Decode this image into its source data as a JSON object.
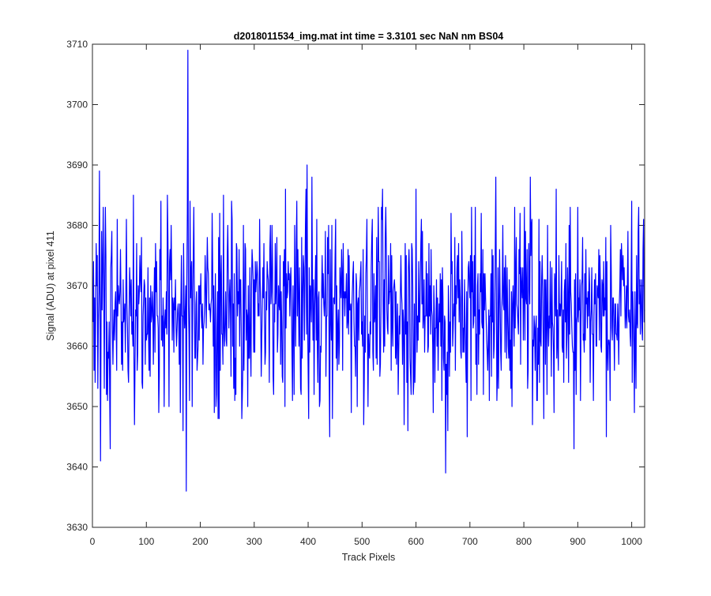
{
  "chart_data": {
    "type": "line",
    "title": "d2018011534_img.mat int time = 3.3101 sec  NaN nm BS04",
    "xlabel": "Track Pixels",
    "ylabel": "Signal (ADU) at pixel 411",
    "xlim": [
      0,
      1024
    ],
    "ylim": [
      3630,
      3710
    ],
    "xticks": [
      0,
      100,
      200,
      300,
      400,
      500,
      600,
      700,
      800,
      900,
      1000
    ],
    "yticks": [
      3630,
      3640,
      3650,
      3660,
      3670,
      3680,
      3690,
      3700,
      3710
    ],
    "grid": false,
    "legend": "none",
    "series_color": "#0000ff",
    "series": [
      {
        "noise": {
          "count": 1024,
          "x_start": 1,
          "mean": 3666.5,
          "std": 7.6,
          "min": 3645,
          "max": 3686,
          "seed": 411
        },
        "points": [
          [
            3,
            3656
          ],
          [
            6,
            3666
          ],
          [
            10,
            3653
          ],
          [
            13,
            3689
          ],
          [
            15,
            3641
          ],
          [
            20,
            3683
          ],
          [
            24,
            3683
          ],
          [
            30,
            3658
          ],
          [
            33,
            3643
          ],
          [
            36,
            3679
          ],
          [
            38,
            3657
          ],
          [
            76,
            3685
          ],
          [
            78,
            3647
          ],
          [
            124,
            3655
          ],
          [
            127,
            3684
          ],
          [
            139,
            3685
          ],
          [
            163,
            3649
          ],
          [
            168,
            3646
          ],
          [
            172,
            3665
          ],
          [
            174,
            3636
          ],
          [
            177,
            3709
          ],
          [
            180,
            3651
          ],
          [
            188,
            3683
          ],
          [
            222,
            3682
          ],
          [
            226,
            3649
          ],
          [
            233,
            3648
          ],
          [
            236,
            3682
          ],
          [
            258,
            3684
          ],
          [
            264,
            3651
          ],
          [
            277,
            3648
          ],
          [
            330,
            3680
          ],
          [
            336,
            3652
          ],
          [
            358,
            3686
          ],
          [
            371,
            3651
          ],
          [
            395,
            3680
          ],
          [
            398,
            3690
          ],
          [
            401,
            3648
          ],
          [
            407,
            3688
          ],
          [
            411,
            3652
          ],
          [
            440,
            3645
          ],
          [
            509,
            3681
          ],
          [
            530,
            3683
          ],
          [
            544,
            3683
          ],
          [
            578,
            3647
          ],
          [
            600,
            3686
          ],
          [
            632,
            3649
          ],
          [
            648,
            3651
          ],
          [
            652,
            3656
          ],
          [
            655,
            3639
          ],
          [
            659,
            3646
          ],
          [
            665,
            3682
          ],
          [
            695,
            3645
          ],
          [
            710,
            3683
          ],
          [
            748,
            3688
          ],
          [
            750,
            3651
          ],
          [
            801,
            3683
          ],
          [
            812,
            3688
          ],
          [
            816,
            3647
          ],
          [
            837,
            3648
          ],
          [
            886,
            3683
          ],
          [
            893,
            3643
          ],
          [
            900,
            3683
          ],
          [
            905,
            3651
          ],
          [
            960,
            3651
          ],
          [
            1000,
            3684
          ],
          [
            1013,
            3683
          ]
        ]
      }
    ]
  }
}
